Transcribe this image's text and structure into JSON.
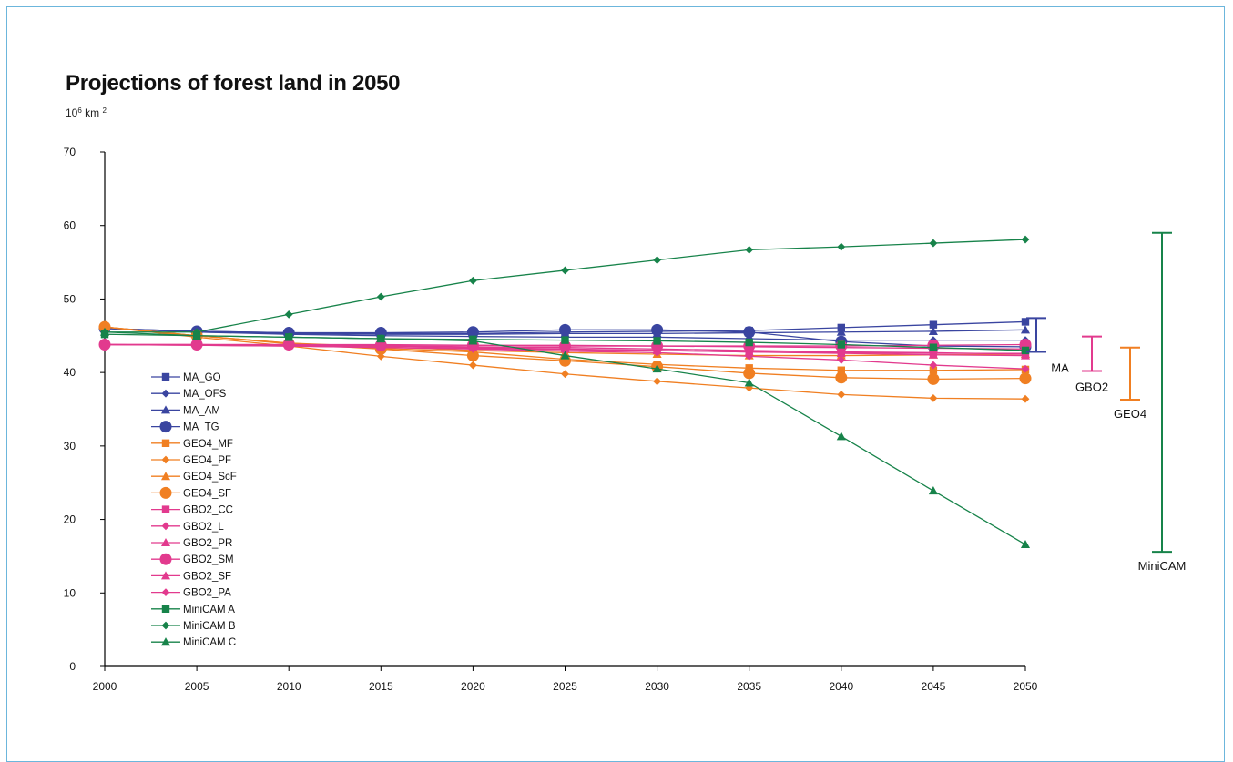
{
  "colors": {
    "border": "#6cb6dc",
    "MA": "#3a45a0",
    "GEO4": "#f07f22",
    "GBO2": "#e23a8e",
    "MiniCAM": "#17834a"
  },
  "header": {
    "title": "Projections of forest land in 2050",
    "unit_base": "10",
    "unit_exp": "6",
    "unit_km": " km ",
    "unit_sq": "2"
  },
  "chart_data": {
    "type": "line",
    "title": "Projections of forest land in 2050",
    "ylabel": "10^6 km^2",
    "xlabel": "",
    "x": [
      2000,
      2005,
      2010,
      2015,
      2020,
      2025,
      2030,
      2035,
      2040,
      2045,
      2050
    ],
    "ylim": [
      0,
      70
    ],
    "yticks": [
      0,
      10,
      20,
      30,
      40,
      50,
      60,
      70
    ],
    "grid": false,
    "legend_position": "inside-left",
    "series": [
      {
        "name": "MA_GO",
        "group": "MA",
        "marker": "square",
        "big": false,
        "values": [
          46.0,
          45.6,
          45.4,
          45.3,
          45.3,
          45.5,
          45.6,
          45.7,
          46.1,
          46.5,
          46.9
        ]
      },
      {
        "name": "MA_OFS",
        "group": "MA",
        "marker": "diamond",
        "big": false,
        "values": [
          46.0,
          45.5,
          45.2,
          45.0,
          44.9,
          44.8,
          44.8,
          44.6,
          44.4,
          44.4,
          44.4
        ]
      },
      {
        "name": "MA_AM",
        "group": "MA",
        "marker": "triangle",
        "big": false,
        "values": [
          46.0,
          45.5,
          45.3,
          45.2,
          45.2,
          45.3,
          45.3,
          45.4,
          45.5,
          45.6,
          45.8
        ]
      },
      {
        "name": "MA_TG",
        "group": "MA",
        "marker": "circle",
        "big": true,
        "values": [
          46.0,
          45.6,
          45.4,
          45.4,
          45.5,
          45.8,
          45.8,
          45.5,
          44.2,
          43.6,
          43.5
        ]
      },
      {
        "name": "GEO4_MF",
        "group": "GEO4",
        "marker": "square",
        "big": false,
        "values": [
          46.2,
          45.0,
          44.0,
          43.3,
          42.8,
          41.8,
          41.1,
          40.6,
          40.3,
          40.3,
          40.4
        ]
      },
      {
        "name": "GEO4_PF",
        "group": "GEO4",
        "marker": "diamond",
        "big": false,
        "values": [
          46.2,
          44.8,
          43.6,
          42.2,
          41.0,
          39.8,
          38.8,
          37.9,
          37.0,
          36.5,
          36.4
        ]
      },
      {
        "name": "GEO4_ScF",
        "group": "GEO4",
        "marker": "triangle",
        "big": false,
        "values": [
          46.2,
          45.0,
          44.0,
          43.5,
          43.0,
          42.7,
          42.5,
          42.3,
          42.3,
          42.4,
          42.5
        ]
      },
      {
        "name": "GEO4_SF",
        "group": "GEO4",
        "marker": "circle",
        "big": true,
        "values": [
          46.2,
          45.0,
          43.9,
          43.2,
          42.3,
          41.6,
          40.8,
          39.9,
          39.3,
          39.1,
          39.2
        ]
      },
      {
        "name": "GBO2_CC",
        "group": "GBO2",
        "marker": "square",
        "big": false,
        "values": [
          43.8,
          43.8,
          43.7,
          43.6,
          43.5,
          43.4,
          43.2,
          43.0,
          42.8,
          42.7,
          42.5
        ]
      },
      {
        "name": "GBO2_L",
        "group": "GBO2",
        "marker": "diamond",
        "big": false,
        "values": [
          43.8,
          43.7,
          43.6,
          43.4,
          43.3,
          43.1,
          43.0,
          42.8,
          42.7,
          42.6,
          42.6
        ]
      },
      {
        "name": "GBO2_PR",
        "group": "GBO2",
        "marker": "triangle",
        "big": false,
        "values": [
          43.8,
          43.8,
          43.8,
          43.8,
          43.7,
          43.7,
          43.6,
          43.5,
          43.4,
          43.3,
          43.2
        ]
      },
      {
        "name": "GBO2_SM",
        "group": "GBO2",
        "marker": "circle",
        "big": true,
        "values": [
          43.8,
          43.8,
          43.8,
          43.7,
          43.7,
          43.6,
          43.6,
          43.6,
          43.6,
          43.7,
          43.8
        ]
      },
      {
        "name": "GBO2_SF",
        "group": "GBO2",
        "marker": "triangle",
        "big": false,
        "values": [
          43.8,
          43.8,
          43.7,
          43.6,
          43.4,
          43.2,
          43.0,
          42.8,
          42.6,
          42.4,
          42.3
        ]
      },
      {
        "name": "GBO2_PA",
        "group": "GBO2",
        "marker": "diamond",
        "big": false,
        "values": [
          43.8,
          43.7,
          43.6,
          43.4,
          43.2,
          42.9,
          42.7,
          42.2,
          41.7,
          41.0,
          40.5
        ]
      },
      {
        "name": "MiniCAM A",
        "group": "MiniCAM",
        "marker": "square",
        "big": false,
        "values": [
          45.2,
          45.0,
          44.8,
          44.6,
          44.5,
          44.4,
          44.3,
          44.1,
          43.8,
          43.4,
          43.0
        ]
      },
      {
        "name": "MiniCAM B",
        "group": "MiniCAM",
        "marker": "diamond",
        "big": false,
        "values": [
          45.5,
          45.5,
          47.9,
          50.3,
          52.5,
          53.9,
          55.3,
          56.7,
          57.1,
          57.6,
          58.1
        ]
      },
      {
        "name": "MiniCAM C",
        "group": "MiniCAM",
        "marker": "triangle",
        "big": false,
        "values": [
          45.5,
          45.0,
          44.8,
          44.6,
          44.3,
          42.3,
          40.5,
          38.6,
          31.3,
          23.9,
          16.6
        ]
      }
    ],
    "ranges": [
      {
        "label": "MA",
        "group": "MA",
        "low": 42.8,
        "high": 47.4
      },
      {
        "label": "GBO2",
        "group": "GBO2",
        "low": 40.2,
        "high": 44.9
      },
      {
        "label": "GEO4",
        "group": "GEO4",
        "low": 36.3,
        "high": 43.4
      },
      {
        "label": "MiniCAM",
        "group": "MiniCAM",
        "low": 15.6,
        "high": 59.0
      }
    ]
  }
}
